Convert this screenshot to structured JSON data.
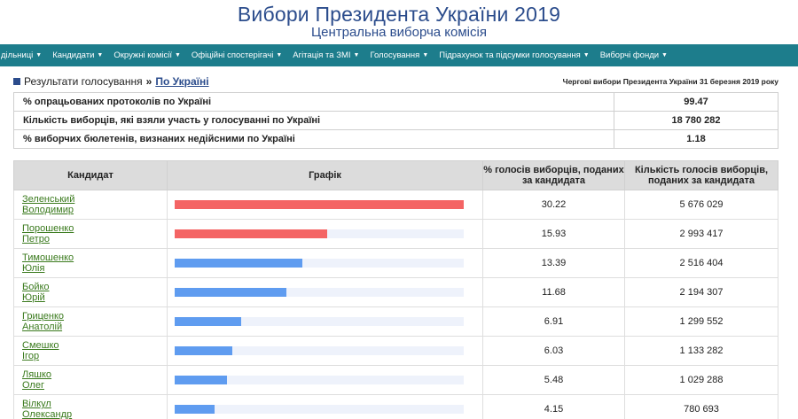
{
  "header": {
    "title": "Вибори Президента України 2019",
    "subtitle": "Центральна виборча комісія"
  },
  "nav": [
    {
      "label": "дільниці"
    },
    {
      "label": "Кандидати"
    },
    {
      "label": "Окружні комісії"
    },
    {
      "label": "Офіційні спостерігачі"
    },
    {
      "label": "Агітація та ЗМІ"
    },
    {
      "label": "Голосування"
    },
    {
      "label": "Підрахунок та підсумки голосування"
    },
    {
      "label": "Виборчі фонди"
    }
  ],
  "breadcrumb": {
    "current": "Результати голосування",
    "separator": "»",
    "link": "По Україні"
  },
  "election_date": "Чергові вибори Президента України 31 березня 2019 року",
  "summary": [
    {
      "label": "% опрацьованих протоколів по Україні",
      "value": "99.47"
    },
    {
      "label": "Кількість виборців, які взяли участь у голосуванні по Україні",
      "value": "18 780 282"
    },
    {
      "label": "% виборчих бюлетенів, визнаних недійсними по Україні",
      "value": "1.18"
    }
  ],
  "results": {
    "headers": {
      "candidate": "Кандидат",
      "graph": "Графік",
      "percent": "% голосів виборців, поданих за кандидата",
      "votes": "Кількість голосів виборців, поданих за кандидата"
    },
    "bar_colors": {
      "leader": "#f46464",
      "other": "#5f9cf0"
    },
    "rows": [
      {
        "first": "Зеленський",
        "second": "Володимир",
        "percent": "30.22",
        "votes": "5 676 029",
        "pct_num": 30.22,
        "leader": true
      },
      {
        "first": "Порошенко",
        "second": "Петро",
        "percent": "15.93",
        "votes": "2 993 417",
        "pct_num": 15.93,
        "leader": true
      },
      {
        "first": "Тимошенко",
        "second": "Юлія",
        "percent": "13.39",
        "votes": "2 516 404",
        "pct_num": 13.39,
        "leader": false
      },
      {
        "first": "Бойко",
        "second": "Юрій",
        "percent": "11.68",
        "votes": "2 194 307",
        "pct_num": 11.68,
        "leader": false
      },
      {
        "first": "Гриценко",
        "second": "Анатолій",
        "percent": "6.91",
        "votes": "1 299 552",
        "pct_num": 6.91,
        "leader": false
      },
      {
        "first": "Смешко",
        "second": "Ігор",
        "percent": "6.03",
        "votes": "1 133 282",
        "pct_num": 6.03,
        "leader": false
      },
      {
        "first": "Ляшко",
        "second": "Олег",
        "percent": "5.48",
        "votes": "1 029 288",
        "pct_num": 5.48,
        "leader": false
      },
      {
        "first": "Вілкул",
        "second": "Олександр",
        "percent": "4.15",
        "votes": "780 693",
        "pct_num": 4.15,
        "leader": false
      }
    ]
  }
}
